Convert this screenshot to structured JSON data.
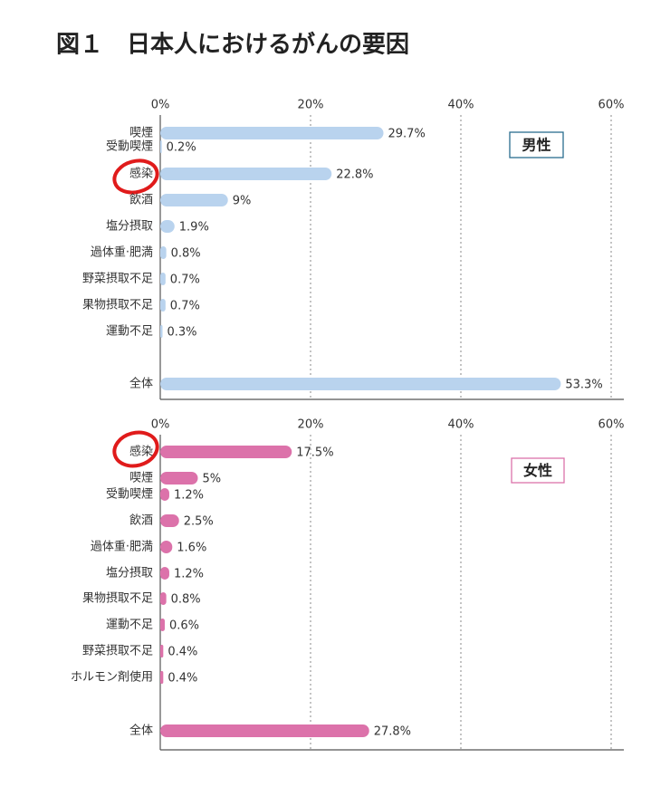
{
  "title": "図１　日本人におけるがんの要因",
  "chart_data": [
    {
      "type": "bar",
      "orientation": "horizontal",
      "categories": [
        "喫煙",
        "受動喫煙",
        "感染",
        "飲酒",
        "塩分摂取",
        "過体重·肥満",
        "野菜摂取不足",
        "果物摂取不足",
        "運動不足",
        "全体"
      ],
      "series": [
        {
          "name": "男性",
          "color": "#b9d3ee",
          "values": [
            29.7,
            0.2,
            22.8,
            9,
            1.9,
            0.8,
            0.7,
            0.7,
            0.3,
            53.3
          ],
          "value_labels": [
            "29.7%",
            "0.2%",
            "22.8%",
            "9%",
            "1.9%",
            "0.8%",
            "0.7%",
            "0.7%",
            "0.3%",
            "53.3%"
          ]
        }
      ],
      "xlim": [
        0,
        60
      ],
      "xticks": [
        {
          "value": 0,
          "label": "0%"
        },
        {
          "value": 20,
          "label": "20%"
        },
        {
          "value": 40,
          "label": "40%"
        },
        {
          "value": 60,
          "label": "60%"
        }
      ],
      "grid": true
    },
    {
      "type": "bar",
      "orientation": "horizontal",
      "categories": [
        "感染",
        "喫煙",
        "受動喫煙",
        "飲酒",
        "過体重·肥満",
        "塩分摂取",
        "果物摂取不足",
        "運動不足",
        "野菜摂取不足",
        "ホルモン剤使用",
        "全体"
      ],
      "series": [
        {
          "name": "女性",
          "color": "#dc72aa",
          "values": [
            17.5,
            5,
            1.2,
            2.5,
            1.6,
            1.2,
            0.8,
            0.6,
            0.4,
            0.4,
            27.8
          ],
          "value_labels": [
            "17.5%",
            "5%",
            "1.2%",
            "2.5%",
            "1.6%",
            "1.2%",
            "0.8%",
            "0.6%",
            "0.4%",
            "0.4%",
            "27.8%"
          ]
        }
      ],
      "xlim": [
        0,
        60
      ],
      "xticks": [
        {
          "value": 0,
          "label": "0%"
        },
        {
          "value": 20,
          "label": "20%"
        },
        {
          "value": 40,
          "label": "40%"
        },
        {
          "value": 60,
          "label": "60%"
        }
      ],
      "grid": true
    }
  ]
}
